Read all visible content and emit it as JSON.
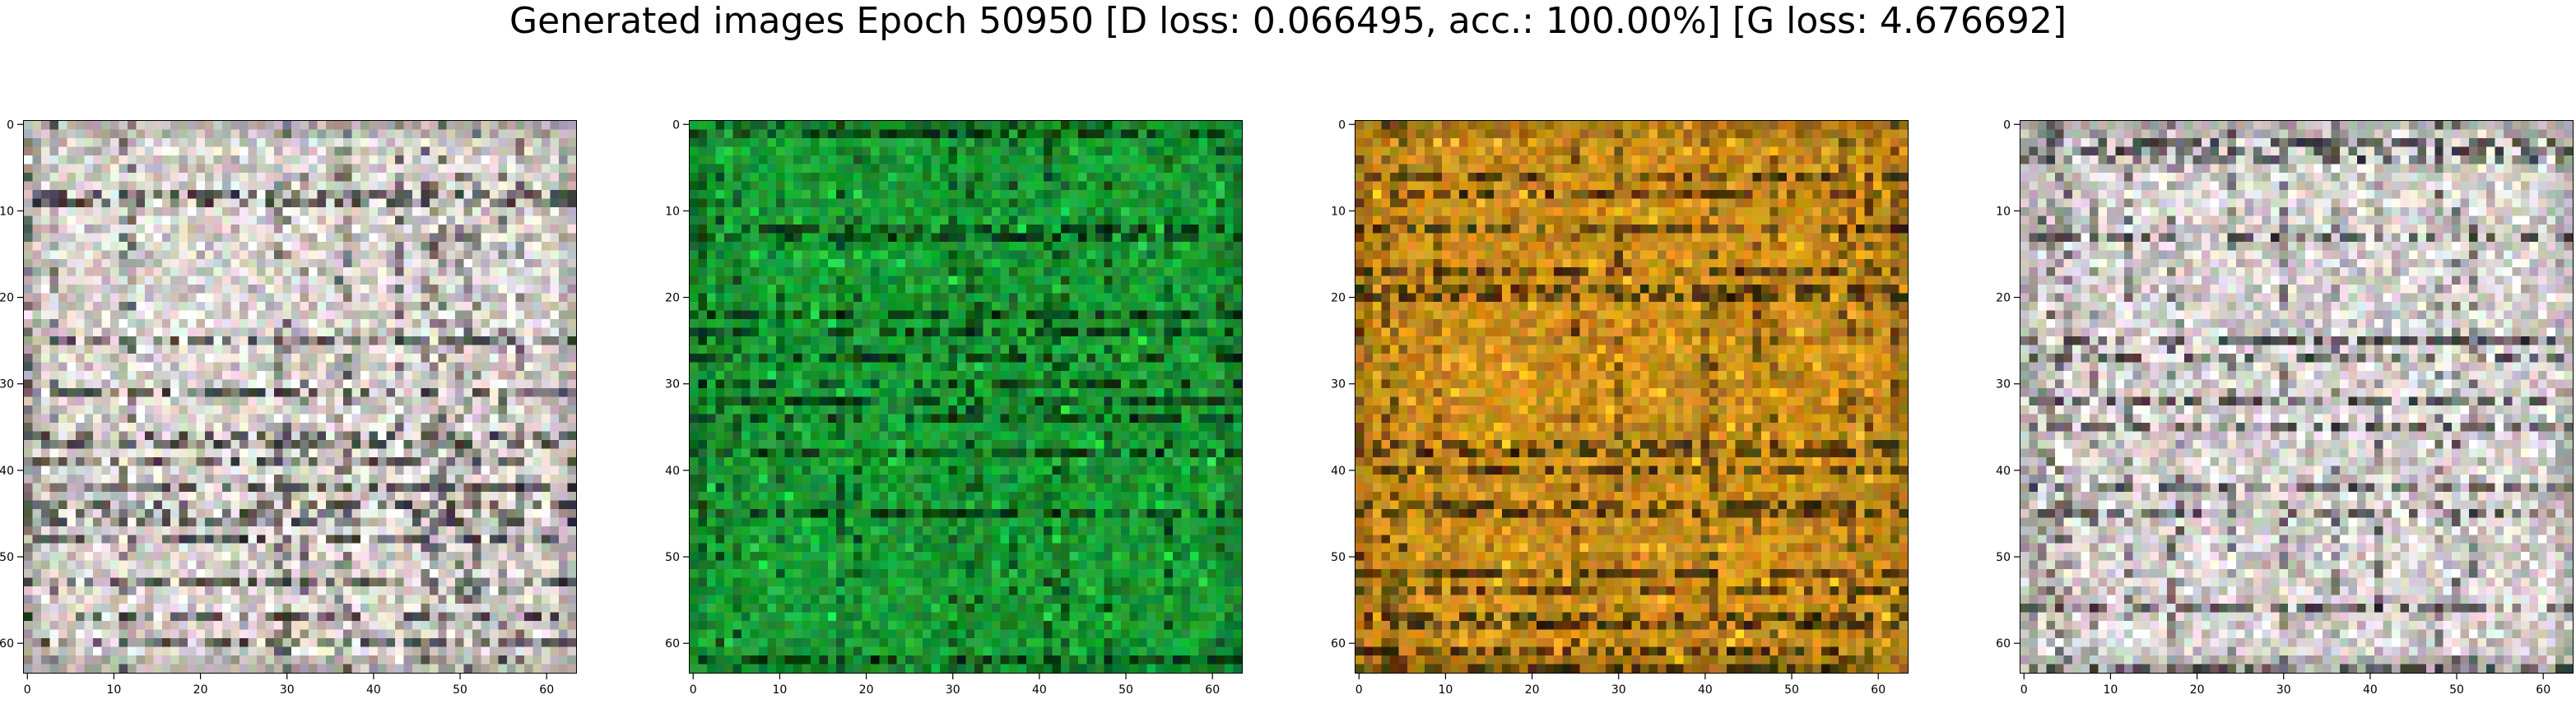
{
  "figure": {
    "title": "Generated images Epoch 50950 [D loss: 0.066495, acc.: 100.00%] [G loss: 4.676692]"
  },
  "chart_data": [
    {
      "type": "heatmap",
      "colormap": "rgb image",
      "dominant_color": "#d6d0cc",
      "x_ticks": [
        "0",
        "10",
        "20",
        "30",
        "40",
        "50",
        "60"
      ],
      "y_ticks": [
        "0",
        "10",
        "20",
        "30",
        "40",
        "50",
        "60"
      ],
      "xlim": [
        -0.5,
        63.5
      ],
      "ylim": [
        63.5,
        -0.5
      ]
    },
    {
      "type": "heatmap",
      "colormap": "rgb image",
      "dominant_color": "#1a9a34",
      "x_ticks": [
        "0",
        "10",
        "20",
        "30",
        "40",
        "50",
        "60"
      ],
      "y_ticks": [
        "0",
        "10",
        "20",
        "30",
        "40",
        "50",
        "60"
      ],
      "xlim": [
        -0.5,
        63.5
      ],
      "ylim": [
        63.5,
        -0.5
      ]
    },
    {
      "type": "heatmap",
      "colormap": "rgb image",
      "dominant_color": "#c98d1c",
      "x_ticks": [
        "0",
        "10",
        "20",
        "30",
        "40",
        "50",
        "60"
      ],
      "y_ticks": [
        "0",
        "10",
        "20",
        "30",
        "40",
        "50",
        "60"
      ],
      "xlim": [
        -0.5,
        63.5
      ],
      "ylim": [
        63.5,
        -0.5
      ]
    },
    {
      "type": "heatmap",
      "colormap": "rgb image",
      "dominant_color": "#d4cfcd",
      "x_ticks": [
        "0",
        "10",
        "20",
        "30",
        "40",
        "50",
        "60"
      ],
      "y_ticks": [
        "0",
        "10",
        "20",
        "30",
        "40",
        "50",
        "60"
      ],
      "xlim": [
        -0.5,
        63.5
      ],
      "ylim": [
        63.5,
        -0.5
      ]
    }
  ]
}
